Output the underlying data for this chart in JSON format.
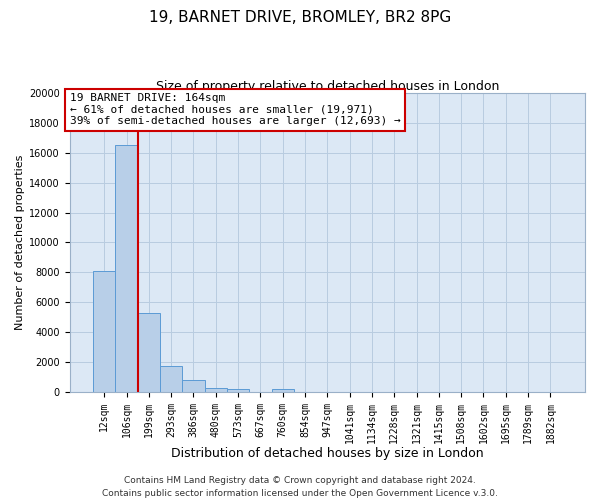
{
  "title": "19, BARNET DRIVE, BROMLEY, BR2 8PG",
  "subtitle": "Size of property relative to detached houses in London",
  "xlabel": "Distribution of detached houses by size in London",
  "ylabel": "Number of detached properties",
  "bar_labels": [
    "12sqm",
    "106sqm",
    "199sqm",
    "293sqm",
    "386sqm",
    "480sqm",
    "573sqm",
    "667sqm",
    "760sqm",
    "854sqm",
    "947sqm",
    "1041sqm",
    "1134sqm",
    "1228sqm",
    "1321sqm",
    "1415sqm",
    "1508sqm",
    "1602sqm",
    "1695sqm",
    "1789sqm",
    "1882sqm"
  ],
  "bar_values": [
    8100,
    16500,
    5300,
    1750,
    800,
    270,
    200,
    0,
    200,
    0,
    0,
    0,
    0,
    0,
    0,
    0,
    0,
    0,
    0,
    0,
    0
  ],
  "bar_color": "#b8cfe8",
  "bar_edge_color": "#5b9bd5",
  "background_color": "#ffffff",
  "plot_bg_color": "#dce8f5",
  "grid_color": "#b8cce0",
  "vline_x": 1.5,
  "vline_color": "#cc0000",
  "ylim": [
    0,
    20000
  ],
  "yticks": [
    0,
    2000,
    4000,
    6000,
    8000,
    10000,
    12000,
    14000,
    16000,
    18000,
    20000
  ],
  "annotation_title": "19 BARNET DRIVE: 164sqm",
  "annotation_line1": "← 61% of detached houses are smaller (19,971)",
  "annotation_line2": "39% of semi-detached houses are larger (12,693) →",
  "annotation_box_color": "#ffffff",
  "annotation_box_edge": "#cc0000",
  "footer1": "Contains HM Land Registry data © Crown copyright and database right 2024.",
  "footer2": "Contains public sector information licensed under the Open Government Licence v.3.0.",
  "title_fontsize": 11,
  "subtitle_fontsize": 9,
  "xlabel_fontsize": 9,
  "ylabel_fontsize": 8,
  "tick_fontsize": 7,
  "annotation_fontsize": 8,
  "footer_fontsize": 6.5
}
